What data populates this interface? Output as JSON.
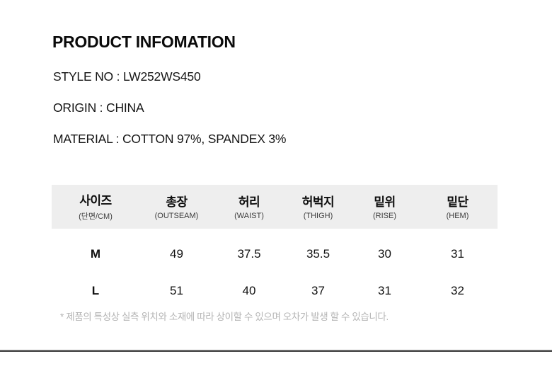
{
  "header": {
    "title": "PRODUCT INFOMATION"
  },
  "specs": {
    "style_no": "STYLE NO : LW252WS450",
    "origin": "ORIGIN : CHINA",
    "material": "MATERIAL : COTTON 97%, SPANDEX 3%"
  },
  "size_table": {
    "columns": [
      {
        "ko": "사이즈",
        "en": "(단면/CM)"
      },
      {
        "ko": "총장",
        "en": "(OUTSEAM)"
      },
      {
        "ko": "허리",
        "en": "(WAIST)"
      },
      {
        "ko": "허벅지",
        "en": "(THIGH)"
      },
      {
        "ko": "밑위",
        "en": "(RISE)"
      },
      {
        "ko": "밑단",
        "en": "(HEM)"
      }
    ],
    "rows": [
      {
        "size": "M",
        "values": [
          "49",
          "37.5",
          "35.5",
          "30",
          "31"
        ]
      },
      {
        "size": "L",
        "values": [
          "51",
          "40",
          "37",
          "31",
          "32"
        ]
      }
    ],
    "footnote": "* 제품의 특성상 실측 위치와 소재에 따라 상이할 수 있으며 오차가 발생 할 수 있습니다."
  },
  "colors": {
    "table_header_bg": "#eeeeee",
    "footnote_text": "#b4b4b4",
    "bottom_rule": "#4b4b4b",
    "text_primary": "#111111"
  },
  "chart_data": {
    "type": "table",
    "title": "PRODUCT INFOMATION size chart",
    "categories": [
      "총장 (OUTSEAM)",
      "허리 (WAIST)",
      "허벅지 (THIGH)",
      "밑위 (RISE)",
      "밑단 (HEM)"
    ],
    "series": [
      {
        "name": "M",
        "values": [
          49,
          37.5,
          35.5,
          30,
          31
        ]
      },
      {
        "name": "L",
        "values": [
          51,
          40,
          37,
          31,
          32
        ]
      }
    ]
  }
}
